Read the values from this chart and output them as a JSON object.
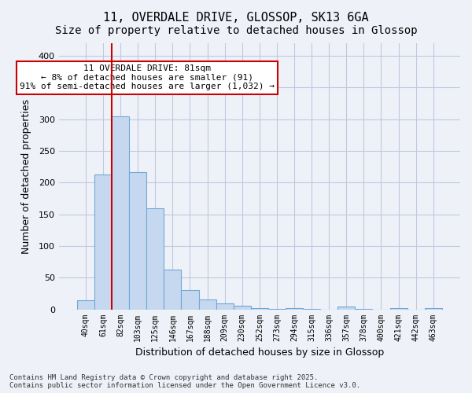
{
  "title_line1": "11, OVERDALE DRIVE, GLOSSOP, SK13 6GA",
  "title_line2": "Size of property relative to detached houses in Glossop",
  "xlabel": "Distribution of detached houses by size in Glossop",
  "ylabel": "Number of detached properties",
  "categories": [
    "40sqm",
    "61sqm",
    "82sqm",
    "103sqm",
    "125sqm",
    "146sqm",
    "167sqm",
    "188sqm",
    "209sqm",
    "230sqm",
    "252sqm",
    "273sqm",
    "294sqm",
    "315sqm",
    "336sqm",
    "357sqm",
    "378sqm",
    "400sqm",
    "421sqm",
    "442sqm",
    "463sqm"
  ],
  "values": [
    14,
    213,
    305,
    217,
    160,
    63,
    30,
    16,
    9,
    6,
    2,
    1,
    2,
    1,
    0,
    4,
    1,
    0,
    2,
    0,
    2
  ],
  "bar_color": "#c5d8f0",
  "bar_edge_color": "#6fa8d6",
  "grid_color": "#c0c8e0",
  "background_color": "#eef2f8",
  "annotation_box_color": "#ffffff",
  "annotation_border_color": "#cc0000",
  "red_line_x": 1,
  "annotation_text": "11 OVERDALE DRIVE: 81sqm\n← 8% of detached houses are smaller (91)\n91% of semi-detached houses are larger (1,032) →",
  "annotation_fontsize": 8,
  "title_fontsize1": 11,
  "title_fontsize2": 10,
  "footer_text": "Contains HM Land Registry data © Crown copyright and database right 2025.\nContains public sector information licensed under the Open Government Licence v3.0.",
  "ylim": [
    0,
    420
  ],
  "yticks": [
    0,
    50,
    100,
    150,
    200,
    250,
    300,
    350,
    400
  ]
}
